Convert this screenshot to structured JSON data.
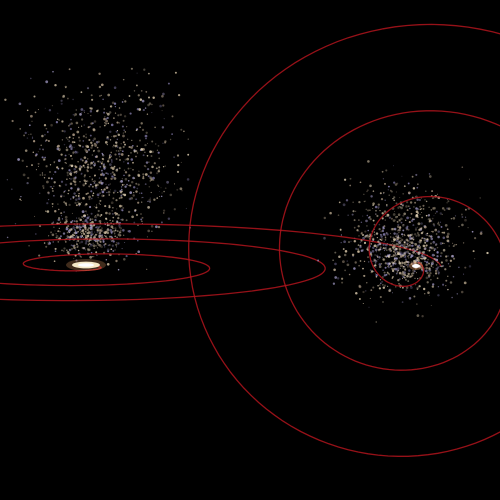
{
  "scene": {
    "background_color": "#000000",
    "spiral_color": "#b0141c",
    "core_color": "#fff6e0",
    "star_colors": [
      "#d8c6a8",
      "#b9a48c",
      "#8e86b8",
      "#cdbb9d",
      "#a49cc8",
      "#e6d6b8"
    ]
  }
}
